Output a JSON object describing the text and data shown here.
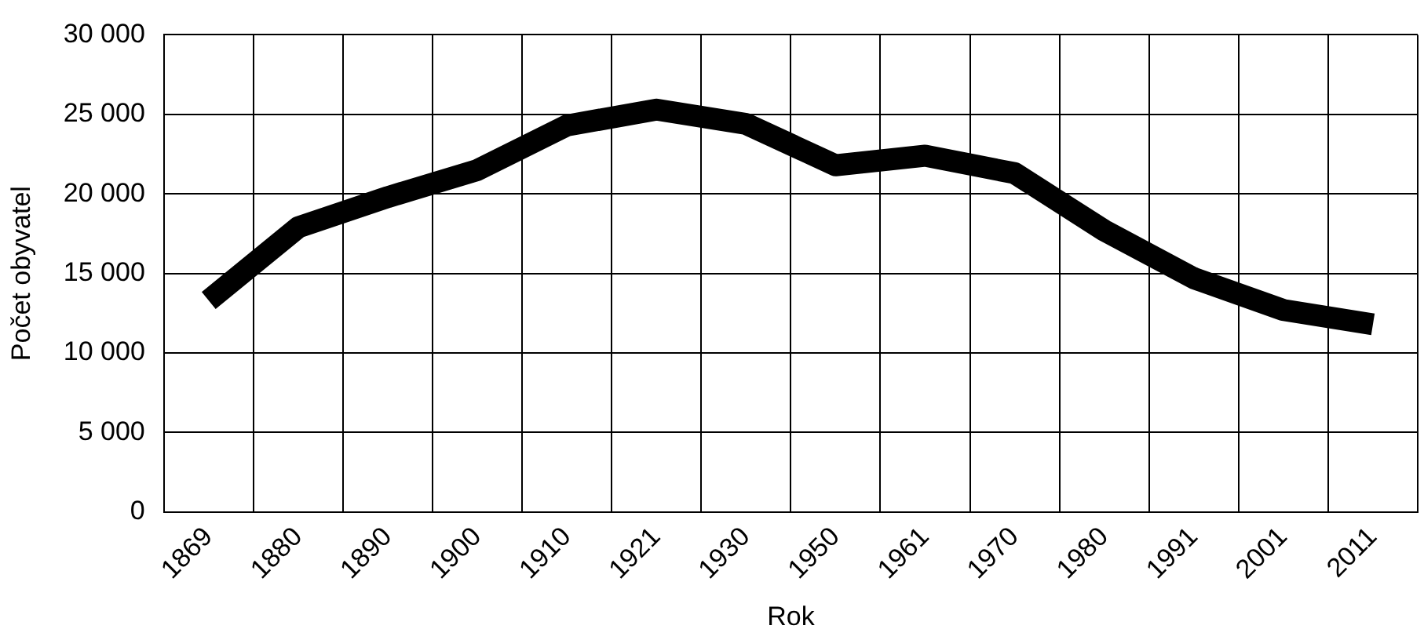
{
  "chart_data": {
    "type": "line",
    "xlabel": "Rok",
    "ylabel": "Počet obyvatel",
    "categories": [
      "1869",
      "1880",
      "1890",
      "1900",
      "1910",
      "1921",
      "1930",
      "1950",
      "1961",
      "1970",
      "1980",
      "1991",
      "2001",
      "2011"
    ],
    "series": [
      {
        "color": "#000000",
        "values": [
          13300,
          17900,
          19800,
          21500,
          24300,
          25300,
          24400,
          21800,
          22400,
          21300,
          17700,
          14700,
          12700,
          11800
        ]
      }
    ],
    "ylim": [
      0,
      30000
    ],
    "yticks": [
      0,
      {
        "value": 5000,
        "label": "5 000"
      },
      {
        "value": 10000,
        "label": "10 000"
      },
      {
        "value": 15000,
        "label": "15 000"
      },
      {
        "value": 20000,
        "label": "20 000"
      },
      {
        "value": 25000,
        "label": "25 000"
      },
      {
        "value": 30000,
        "label": "30 000"
      }
    ],
    "grid": true,
    "legend": false,
    "marker": "none",
    "line_style": "solid"
  }
}
